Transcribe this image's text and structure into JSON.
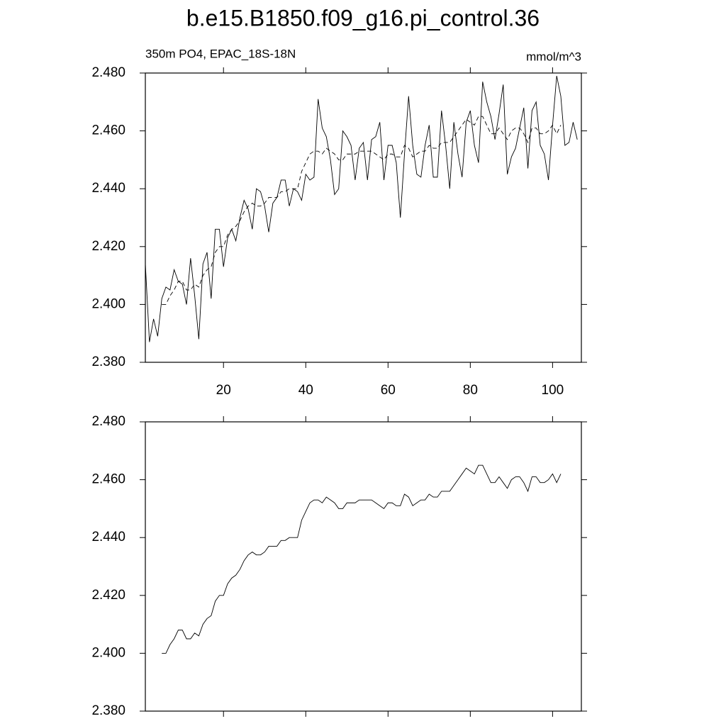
{
  "title": "b.e15.B1850.f09_g16.pi_control.36",
  "chart_data": [
    {
      "type": "line",
      "subtitle_left": "350m PO4, EPAC_18S-18N",
      "subtitle_right": "mmol/m^3",
      "x": [
        1,
        2,
        3,
        4,
        5,
        6,
        7,
        8,
        9,
        10,
        11,
        12,
        13,
        14,
        15,
        16,
        17,
        18,
        19,
        20,
        21,
        22,
        23,
        24,
        25,
        26,
        27,
        28,
        29,
        30,
        31,
        32,
        33,
        34,
        35,
        36,
        37,
        38,
        39,
        40,
        41,
        42,
        43,
        44,
        45,
        46,
        47,
        48,
        49,
        50,
        51,
        52,
        53,
        54,
        55,
        56,
        57,
        58,
        59,
        60,
        61,
        62,
        63,
        64,
        65,
        66,
        67,
        68,
        69,
        70,
        71,
        72,
        73,
        74,
        75,
        76,
        77,
        78,
        79,
        80,
        81,
        82,
        83,
        84,
        85,
        86,
        87,
        88,
        89,
        90,
        91,
        92,
        93,
        94,
        95,
        96,
        97,
        98,
        99,
        100,
        101,
        102,
        103,
        104,
        105,
        106
      ],
      "series": [
        {
          "color": "#000000",
          "dashed": false,
          "values": [
            2.414,
            2.387,
            2.395,
            2.389,
            2.402,
            2.406,
            2.405,
            2.412,
            2.408,
            2.407,
            2.4,
            2.416,
            2.403,
            2.388,
            2.414,
            2.418,
            2.402,
            2.426,
            2.426,
            2.413,
            2.423,
            2.426,
            2.422,
            2.43,
            2.436,
            2.433,
            2.426,
            2.44,
            2.439,
            2.434,
            2.425,
            2.435,
            2.437,
            2.443,
            2.443,
            2.434,
            2.44,
            2.439,
            2.436,
            2.445,
            2.443,
            2.444,
            2.471,
            2.461,
            2.458,
            2.45,
            2.438,
            2.44,
            2.46,
            2.458,
            2.455,
            2.443,
            2.454,
            2.456,
            2.443,
            2.457,
            2.458,
            2.463,
            2.443,
            2.455,
            2.455,
            2.449,
            2.43,
            2.452,
            2.472,
            2.455,
            2.445,
            2.444,
            2.455,
            2.462,
            2.444,
            2.444,
            2.467,
            2.455,
            2.44,
            2.463,
            2.452,
            2.444,
            2.463,
            2.467,
            2.455,
            2.449,
            2.477,
            2.47,
            2.465,
            2.457,
            2.466,
            2.476,
            2.445,
            2.451,
            2.454,
            2.461,
            2.468,
            2.447,
            2.467,
            2.47,
            2.455,
            2.452,
            2.443,
            2.462,
            2.479,
            2.472,
            2.455,
            2.456,
            2.463,
            2.457
          ]
        },
        {
          "color": "#000000",
          "dashed": true,
          "values": [
            null,
            null,
            null,
            null,
            2.4,
            2.4,
            2.403,
            2.405,
            2.408,
            2.408,
            2.405,
            2.405,
            2.407,
            2.406,
            2.41,
            2.412,
            2.413,
            2.418,
            2.42,
            2.42,
            2.424,
            2.426,
            2.427,
            2.429,
            2.432,
            2.434,
            2.435,
            2.434,
            2.434,
            2.435,
            2.437,
            2.437,
            2.437,
            2.439,
            2.439,
            2.44,
            2.44,
            2.44,
            2.446,
            2.449,
            2.452,
            2.453,
            2.453,
            2.452,
            2.454,
            2.453,
            2.452,
            2.45,
            2.45,
            2.452,
            2.452,
            2.452,
            2.453,
            2.453,
            2.453,
            2.453,
            2.452,
            2.451,
            2.45,
            2.452,
            2.452,
            2.451,
            2.451,
            2.455,
            2.454,
            2.451,
            2.452,
            2.453,
            2.453,
            2.455,
            2.454,
            2.454,
            2.456,
            2.456,
            2.456,
            2.458,
            2.46,
            2.462,
            2.464,
            2.463,
            2.462,
            2.465,
            2.465,
            2.462,
            2.459,
            2.459,
            2.461,
            2.459,
            2.457,
            2.46,
            2.461,
            2.461,
            2.459,
            2.456,
            2.461,
            2.461,
            2.459,
            2.459,
            2.46,
            2.462,
            2.459,
            2.462,
            null,
            null,
            null,
            null
          ]
        }
      ],
      "xlim": [
        1,
        107
      ],
      "xticks": [
        20,
        40,
        60,
        80,
        100
      ],
      "ylim": [
        2.38,
        2.48
      ],
      "yticks": [
        {
          "value": 2.38,
          "label": "2.380"
        },
        {
          "value": 2.4,
          "label": "2.400"
        },
        {
          "value": 2.42,
          "label": "2.420"
        },
        {
          "value": 2.44,
          "label": "2.440"
        },
        {
          "value": 2.46,
          "label": "2.460"
        },
        {
          "value": 2.48,
          "label": "2.480"
        }
      ]
    },
    {
      "type": "line",
      "x": [
        1,
        2,
        3,
        4,
        5,
        6,
        7,
        8,
        9,
        10,
        11,
        12,
        13,
        14,
        15,
        16,
        17,
        18,
        19,
        20,
        21,
        22,
        23,
        24,
        25,
        26,
        27,
        28,
        29,
        30,
        31,
        32,
        33,
        34,
        35,
        36,
        37,
        38,
        39,
        40,
        41,
        42,
        43,
        44,
        45,
        46,
        47,
        48,
        49,
        50,
        51,
        52,
        53,
        54,
        55,
        56,
        57,
        58,
        59,
        60,
        61,
        62,
        63,
        64,
        65,
        66,
        67,
        68,
        69,
        70,
        71,
        72,
        73,
        74,
        75,
        76,
        77,
        78,
        79,
        80,
        81,
        82,
        83,
        84,
        85,
        86,
        87,
        88,
        89,
        90,
        91,
        92,
        93,
        94,
        95,
        96,
        97,
        98,
        99,
        100,
        101,
        102,
        103,
        104,
        105,
        106
      ],
      "series": [
        {
          "color": "#000000",
          "dashed": false,
          "values": [
            null,
            null,
            null,
            null,
            2.4,
            2.4,
            2.403,
            2.405,
            2.408,
            2.408,
            2.405,
            2.405,
            2.407,
            2.406,
            2.41,
            2.412,
            2.413,
            2.418,
            2.42,
            2.42,
            2.424,
            2.426,
            2.427,
            2.429,
            2.432,
            2.434,
            2.435,
            2.434,
            2.434,
            2.435,
            2.437,
            2.437,
            2.437,
            2.439,
            2.439,
            2.44,
            2.44,
            2.44,
            2.446,
            2.449,
            2.452,
            2.453,
            2.453,
            2.452,
            2.454,
            2.453,
            2.452,
            2.45,
            2.45,
            2.452,
            2.452,
            2.452,
            2.453,
            2.453,
            2.453,
            2.453,
            2.452,
            2.451,
            2.45,
            2.452,
            2.452,
            2.451,
            2.451,
            2.455,
            2.454,
            2.451,
            2.452,
            2.453,
            2.453,
            2.455,
            2.454,
            2.454,
            2.456,
            2.456,
            2.456,
            2.458,
            2.46,
            2.462,
            2.464,
            2.463,
            2.462,
            2.465,
            2.465,
            2.462,
            2.459,
            2.459,
            2.461,
            2.459,
            2.457,
            2.46,
            2.461,
            2.461,
            2.459,
            2.456,
            2.461,
            2.461,
            2.459,
            2.459,
            2.46,
            2.462,
            2.459,
            2.462,
            null,
            null,
            null,
            null
          ]
        }
      ],
      "xlim": [
        1,
        107
      ],
      "xticks": [
        20,
        40,
        60,
        80,
        100
      ],
      "ylim": [
        2.38,
        2.48
      ],
      "yticks": [
        {
          "value": 2.38,
          "label": "2.380"
        },
        {
          "value": 2.4,
          "label": "2.400"
        },
        {
          "value": 2.42,
          "label": "2.420"
        },
        {
          "value": 2.44,
          "label": "2.440"
        },
        {
          "value": 2.46,
          "label": "2.460"
        },
        {
          "value": 2.48,
          "label": "2.480"
        }
      ]
    }
  ]
}
